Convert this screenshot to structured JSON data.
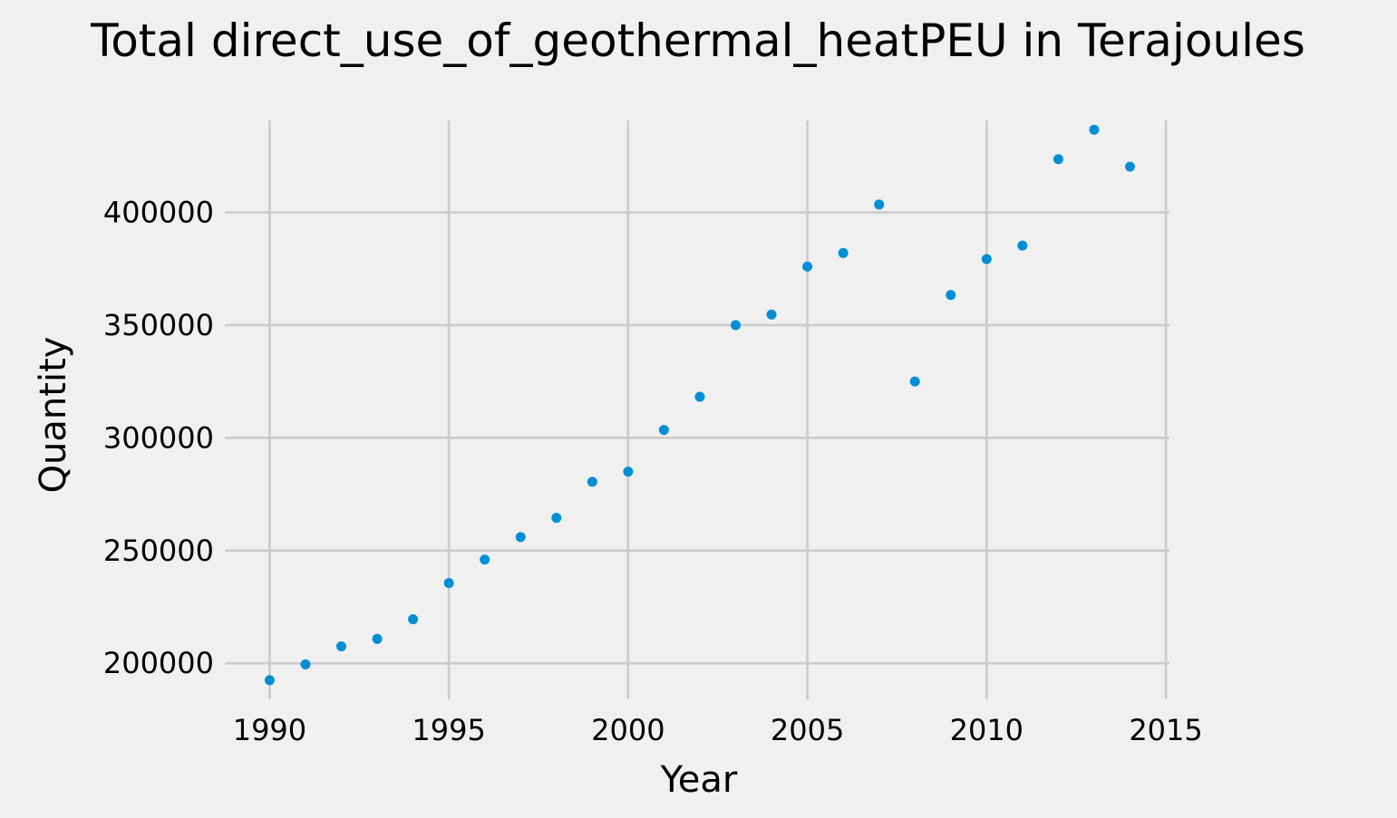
{
  "chart_data": {
    "type": "scatter",
    "title": "Total direct_use_of_geothermal_heatPEU in Terajoules",
    "xlabel": "Year",
    "ylabel": "Quantity",
    "xlim": [
      1988.75,
      2015.1
    ],
    "ylim": [
      184000,
      442000
    ],
    "xticks": [
      1990,
      1995,
      2000,
      2005,
      2010,
      2015
    ],
    "yticks": [
      200000,
      250000,
      300000,
      350000,
      400000
    ],
    "grid": true,
    "color": "#008fd5",
    "x": [
      1990,
      1991,
      1992,
      1993,
      1994,
      1995,
      1996,
      1997,
      1998,
      1999,
      2000,
      2001,
      2002,
      2003,
      2004,
      2005,
      2006,
      2007,
      2008,
      2009,
      2010,
      2011,
      2012,
      2013,
      2014
    ],
    "y": [
      192500,
      199500,
      207500,
      210800,
      219500,
      235600,
      246000,
      256000,
      264500,
      280500,
      285000,
      303500,
      318200,
      350000,
      354700,
      376000,
      382000,
      403500,
      325000,
      363400,
      379300,
      385300,
      423600,
      436700,
      420300
    ]
  }
}
